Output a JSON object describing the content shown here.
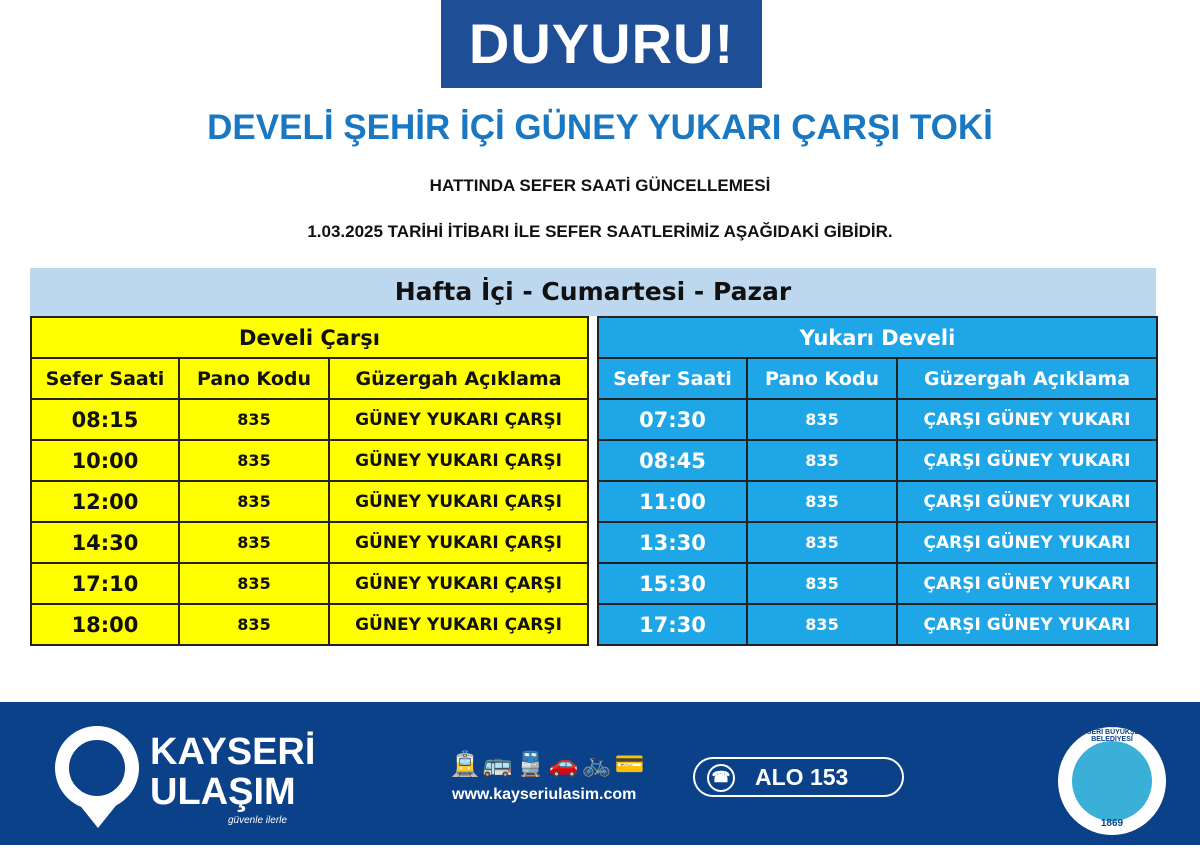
{
  "banner": "DUYURU!",
  "title": "DEVELİ ŞEHİR İÇİ GÜNEY YUKARI ÇARŞI TOKİ",
  "subtitle": "HATTINDA SEFER SAATİ GÜNCELLEMESİ",
  "notice": "1.03.2025 TARİHİ İTİBARI İLE SEFER SAATLERİMİZ AŞAĞIDAKİ GİBİDİR.",
  "days": "Hafta İçi - Cumartesi - Pazar",
  "colors": {
    "banner": "#1e4f96",
    "title": "#1a78c2",
    "band": "#bdd7ee",
    "left": "#ffff00",
    "right": "#1ea6e6",
    "footer": "#0a4189"
  },
  "left": {
    "name": "Develi Çarşı",
    "headers": [
      "Sefer Saati",
      "Pano Kodu",
      "Güzergah Açıklama"
    ],
    "rows": [
      [
        "08:15",
        "835",
        "GÜNEY YUKARI ÇARŞI"
      ],
      [
        "10:00",
        "835",
        "GÜNEY YUKARI ÇARŞI"
      ],
      [
        "12:00",
        "835",
        "GÜNEY YUKARI ÇARŞI"
      ],
      [
        "14:30",
        "835",
        "GÜNEY YUKARI ÇARŞI"
      ],
      [
        "17:10",
        "835",
        "GÜNEY YUKARI ÇARŞI"
      ],
      [
        "18:00",
        "835",
        "GÜNEY YUKARI ÇARŞI"
      ]
    ]
  },
  "right": {
    "name": "Yukarı Develi",
    "headers": [
      "Sefer Saati",
      "Pano Kodu",
      "Güzergah Açıklama"
    ],
    "rows": [
      [
        "07:30",
        "835",
        "ÇARŞI GÜNEY YUKARI"
      ],
      [
        "08:45",
        "835",
        "ÇARŞI GÜNEY YUKARI"
      ],
      [
        "11:00",
        "835",
        "ÇARŞI GÜNEY YUKARI"
      ],
      [
        "13:30",
        "835",
        "ÇARŞI GÜNEY YUKARI"
      ],
      [
        "15:30",
        "835",
        "ÇARŞI GÜNEY YUKARI"
      ],
      [
        "17:30",
        "835",
        "ÇARŞI GÜNEY YUKARI"
      ]
    ]
  },
  "footer": {
    "logo_line1": "KAYSERİ",
    "logo_line2": "ULAŞIM",
    "slogan": "güvenle ilerle",
    "transport_icons": [
      "tram-icon",
      "bus-icon",
      "train-icon",
      "parking-car-icon",
      "bicycle-icon",
      "card-icon"
    ],
    "website": "www.kayseriulasim.com",
    "hotline": "ALO 153",
    "seal_name": "KAYSERİ BÜYÜKŞEHİR BELEDİYESİ",
    "seal_year": "1869"
  }
}
